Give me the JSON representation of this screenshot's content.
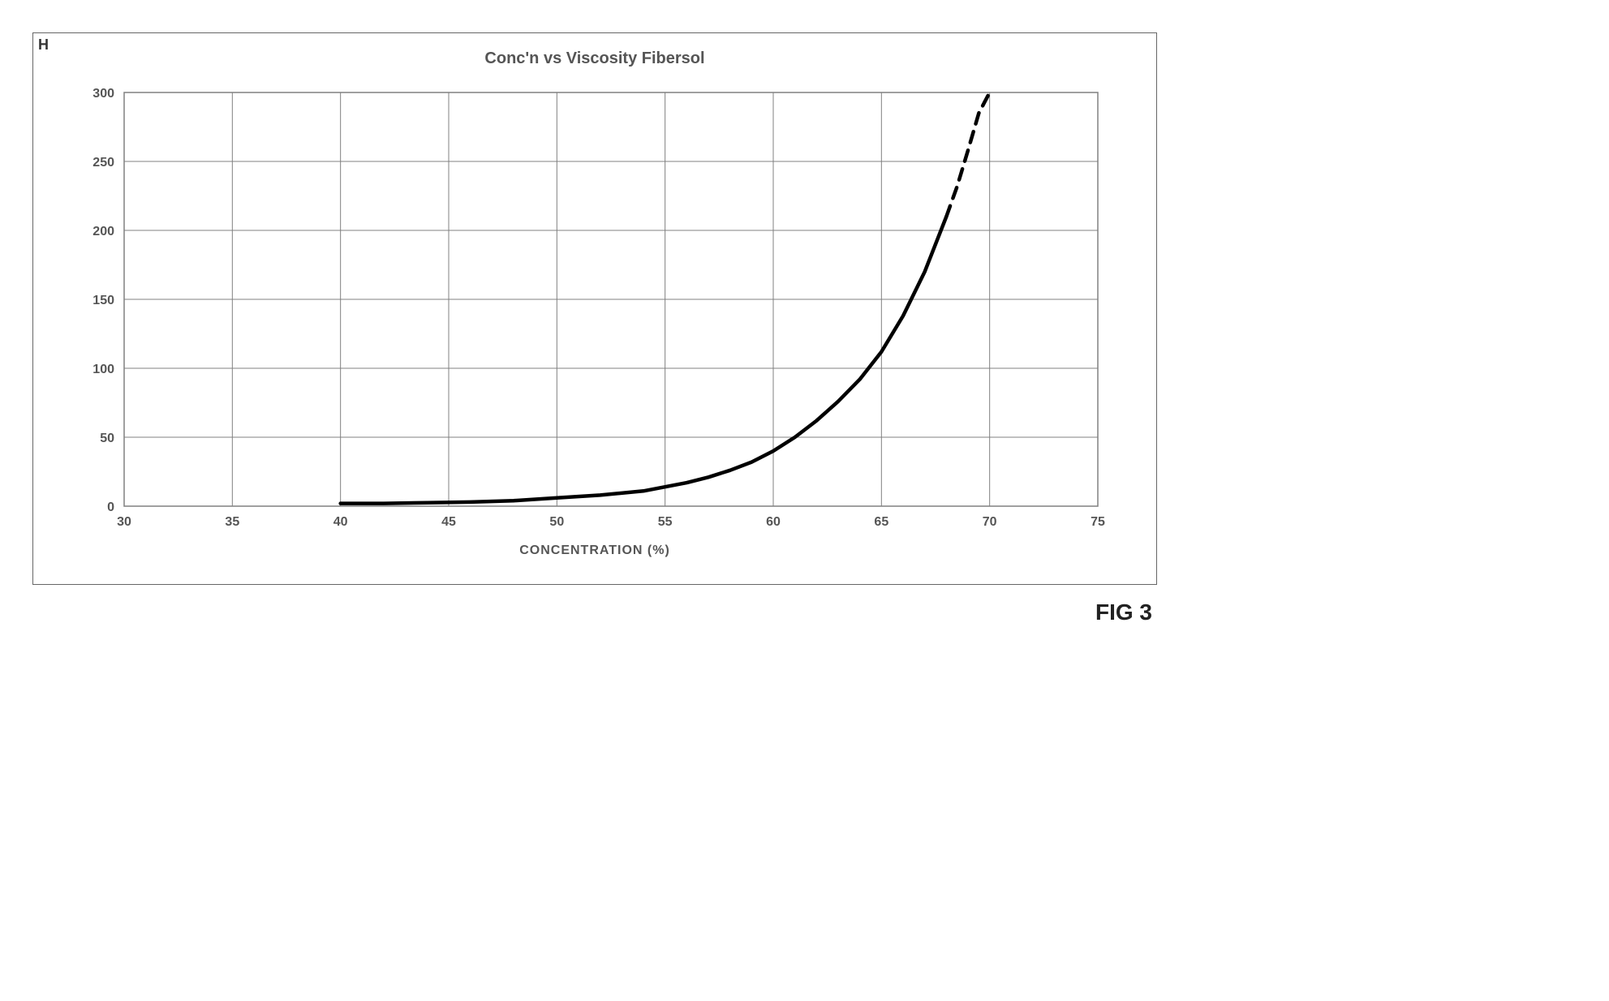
{
  "panel_label": "H",
  "figure_label": "FIG 3",
  "chart": {
    "type": "line",
    "title": "Conc'n vs Viscosity  Fibersol",
    "xlabel": "CONCENTRATION (%)",
    "title_fontsize": 20,
    "label_fontsize": 16,
    "tick_fontsize": 16,
    "xlim": [
      30,
      75
    ],
    "ylim": [
      0,
      300
    ],
    "xtick_step": 5,
    "xticks": [
      30,
      35,
      40,
      45,
      50,
      55,
      60,
      65,
      70,
      75
    ],
    "ytick_step": 50,
    "yticks": [
      0,
      50,
      100,
      150,
      200,
      250,
      300
    ],
    "background_color": "#ffffff",
    "plot_border_color": "#808080",
    "grid_color": "#808080",
    "grid_width": 1,
    "series": [
      {
        "name": "solid",
        "color": "#000000",
        "width": 4.5,
        "dash": "none",
        "points": [
          [
            40,
            2
          ],
          [
            42,
            2
          ],
          [
            44,
            2.5
          ],
          [
            46,
            3
          ],
          [
            48,
            4
          ],
          [
            50,
            6
          ],
          [
            52,
            8
          ],
          [
            54,
            11
          ],
          [
            55,
            14
          ],
          [
            56,
            17
          ],
          [
            57,
            21
          ],
          [
            58,
            26
          ],
          [
            59,
            32
          ],
          [
            60,
            40
          ],
          [
            61,
            50
          ],
          [
            62,
            62
          ],
          [
            63,
            76
          ],
          [
            64,
            92
          ],
          [
            65,
            112
          ],
          [
            66,
            138
          ],
          [
            67,
            170
          ],
          [
            68,
            210
          ]
        ]
      },
      {
        "name": "dashed-extrapolation",
        "color": "#000000",
        "width": 4.5,
        "dash": "14,10",
        "points": [
          [
            68,
            210
          ],
          [
            68.5,
            232
          ],
          [
            69,
            258
          ],
          [
            69.5,
            285
          ],
          [
            70,
            300
          ]
        ]
      }
    ]
  }
}
